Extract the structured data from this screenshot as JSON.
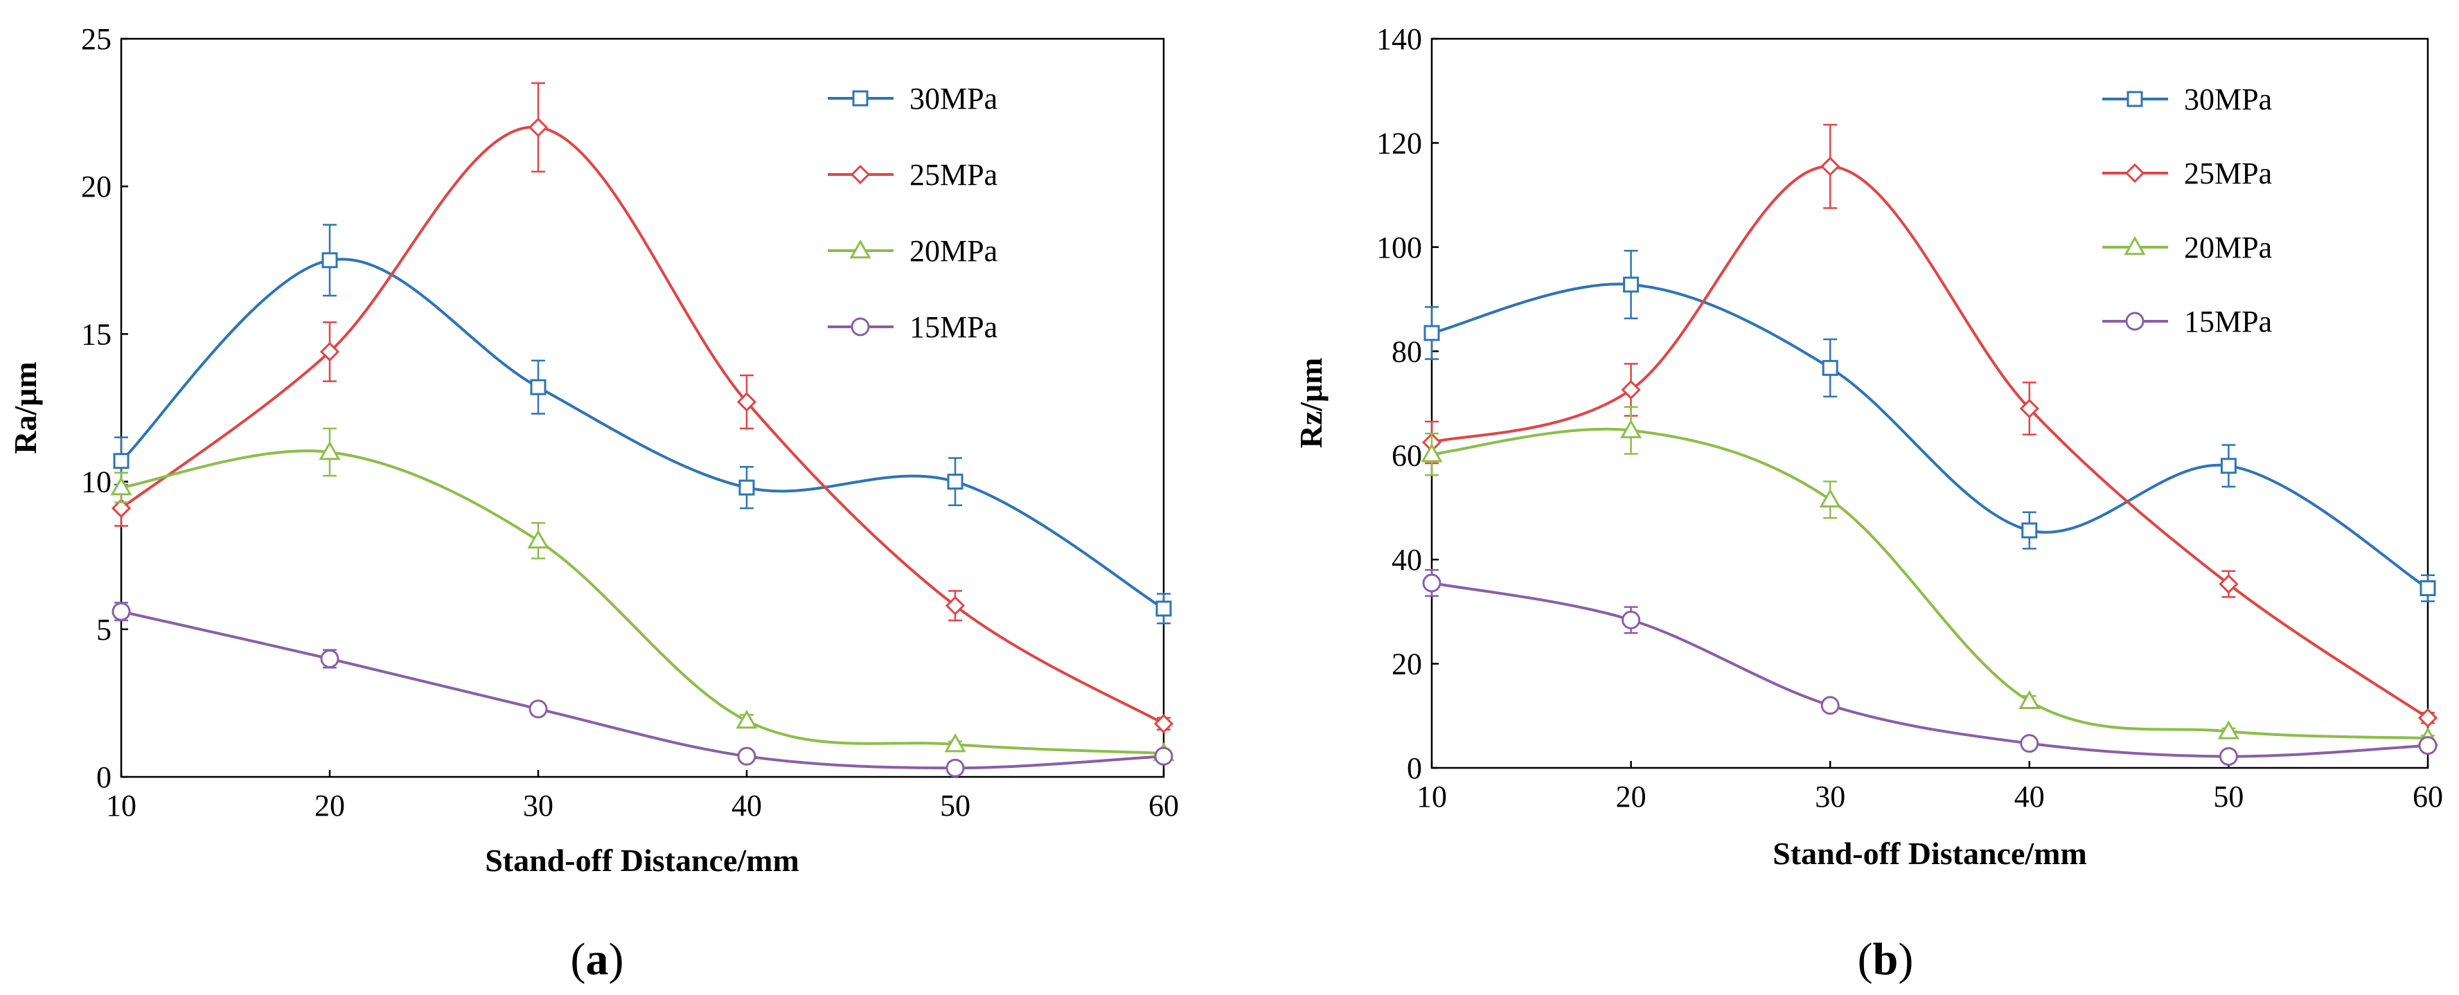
{
  "chart_data": [
    {
      "type": "line",
      "panel_label": "a",
      "xlabel": "Stand-off Distance/mm",
      "ylabel": "Ra/μm",
      "x": [
        10,
        20,
        30,
        40,
        50,
        60
      ],
      "xlim": [
        10,
        60
      ],
      "xticks": [
        10,
        20,
        30,
        40,
        50,
        60
      ],
      "ylim": [
        0,
        25
      ],
      "yticks": [
        0,
        5,
        10,
        15,
        20,
        25
      ],
      "grid": false,
      "legend_position": "top-right",
      "series": [
        {
          "name": "30MPa",
          "color": "#2E75B6",
          "marker": "square",
          "values": [
            10.7,
            17.5,
            13.2,
            9.8,
            10.0,
            5.7
          ],
          "errors": [
            0.8,
            1.2,
            0.9,
            0.7,
            0.8,
            0.5
          ]
        },
        {
          "name": "25MPa",
          "color": "#E04646",
          "marker": "diamond",
          "values": [
            9.1,
            14.4,
            22.0,
            12.7,
            5.8,
            1.8
          ],
          "errors": [
            0.6,
            1.0,
            1.5,
            0.9,
            0.5,
            0.2
          ]
        },
        {
          "name": "20MPa",
          "color": "#8DBE4A",
          "marker": "triangle",
          "values": [
            9.8,
            11.0,
            8.0,
            1.9,
            1.1,
            0.8
          ],
          "errors": [
            0.5,
            0.8,
            0.6,
            0.2,
            0.1,
            0.1
          ]
        },
        {
          "name": "15MPa",
          "color": "#8A5FA8",
          "marker": "circle",
          "values": [
            5.6,
            4.0,
            2.3,
            0.7,
            0.3,
            0.7
          ],
          "errors": [
            0.3,
            0.3,
            0.2,
            0.1,
            0.1,
            0.1
          ]
        }
      ]
    },
    {
      "type": "line",
      "panel_label": "b",
      "xlabel": "Stand-off Distance/mm",
      "ylabel": "Rz/μm",
      "x": [
        10,
        20,
        30,
        40,
        50,
        60
      ],
      "xlim": [
        10,
        60
      ],
      "xticks": [
        10,
        20,
        30,
        40,
        50,
        60
      ],
      "ylim": [
        0,
        140
      ],
      "yticks": [
        0,
        20,
        40,
        60,
        80,
        100,
        120,
        140
      ],
      "grid": false,
      "legend_position": "top-right",
      "series": [
        {
          "name": "30MPa",
          "color": "#2E75B6",
          "marker": "square",
          "values": [
            83.5,
            92.8,
            76.8,
            45.6,
            58.0,
            34.5
          ],
          "errors": [
            5.0,
            6.5,
            5.5,
            3.5,
            4.0,
            2.5
          ]
        },
        {
          "name": "25MPa",
          "color": "#E04646",
          "marker": "diamond",
          "values": [
            62.5,
            72.6,
            115.5,
            69.0,
            35.3,
            9.6
          ],
          "errors": [
            4.0,
            5.0,
            8.0,
            5.0,
            2.5,
            1.0
          ]
        },
        {
          "name": "20MPa",
          "color": "#8DBE4A",
          "marker": "triangle",
          "values": [
            60.2,
            64.8,
            51.5,
            12.8,
            7.0,
            5.7
          ],
          "errors": [
            4.0,
            4.5,
            3.5,
            1.0,
            0.6,
            0.5
          ]
        },
        {
          "name": "15MPa",
          "color": "#8A5FA8",
          "marker": "circle",
          "values": [
            35.5,
            28.4,
            12.0,
            4.7,
            2.2,
            4.3
          ],
          "errors": [
            2.5,
            2.5,
            1.0,
            0.5,
            0.3,
            0.4
          ]
        }
      ]
    }
  ]
}
